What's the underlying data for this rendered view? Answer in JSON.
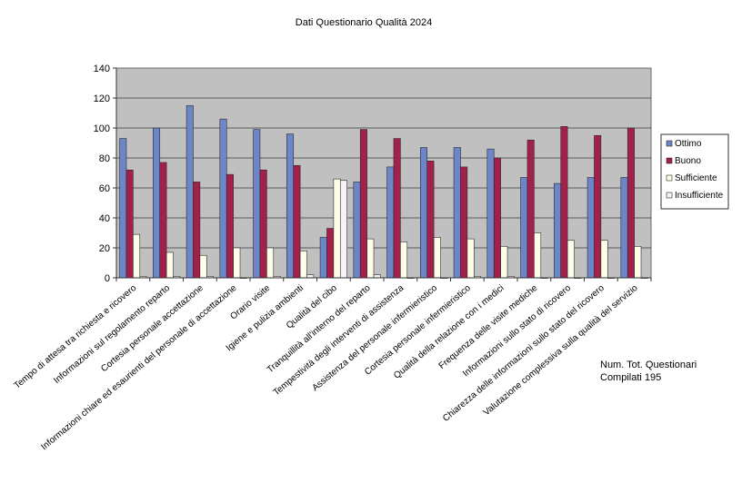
{
  "chart_data": {
    "type": "bar",
    "title": "Dati Questionario Qualità 2024",
    "xlabel": "",
    "ylabel": "",
    "ylim": [
      0,
      140
    ],
    "yticks": [
      0,
      20,
      40,
      60,
      80,
      100,
      120,
      140
    ],
    "grid": true,
    "legend_position": "right",
    "categories": [
      "Tempo di attesa tra richiesta e ricovero",
      "Informazioni sul regolamento reparto",
      "Cortesia personale accettazione",
      "Informazioni chiare ed esaurienti del personale di accettazione",
      "Orario visite",
      "Igiene e pulizia ambienti",
      "Qualità del cibo",
      "Tranquillità all'interno del reparto",
      "Tempestività degli interventi di assistenza",
      "Assistenza del personale infermieristico",
      "Cortesia personale infermieristico",
      "Qualità della relazione con i medici",
      "Frequenza delle visite mediche",
      "Informazioni sullo stato di ricovero",
      "Chiarezza delle informazioni sullo stato del ricovero",
      "Valutazione complessiva sulla qualità del servizio"
    ],
    "series": [
      {
        "name": "Ottimo",
        "color": "#6d86c8",
        "values": [
          93,
          100,
          115,
          106,
          99,
          96,
          27,
          64,
          74,
          87,
          87,
          86,
          67,
          63,
          67,
          67
        ]
      },
      {
        "name": "Buono",
        "color": "#a3204a",
        "values": [
          72,
          77,
          64,
          69,
          72,
          75,
          33,
          99,
          93,
          78,
          74,
          80,
          92,
          101,
          95,
          100
        ]
      },
      {
        "name": "Sufficiente",
        "color": "#fdfde8",
        "values": [
          29,
          17,
          15,
          20,
          20,
          18,
          66,
          26,
          24,
          27,
          26,
          21,
          30,
          25,
          25,
          21
        ]
      },
      {
        "name": "Insufficiente",
        "color": "#f7f2f5",
        "values": [
          1,
          1,
          1,
          0,
          1,
          2,
          65,
          2,
          0,
          0,
          1,
          1,
          0,
          0,
          0,
          0
        ]
      }
    ]
  },
  "note": {
    "line1": "Num. Tot. Questionari",
    "line2": "Compilati 195"
  }
}
